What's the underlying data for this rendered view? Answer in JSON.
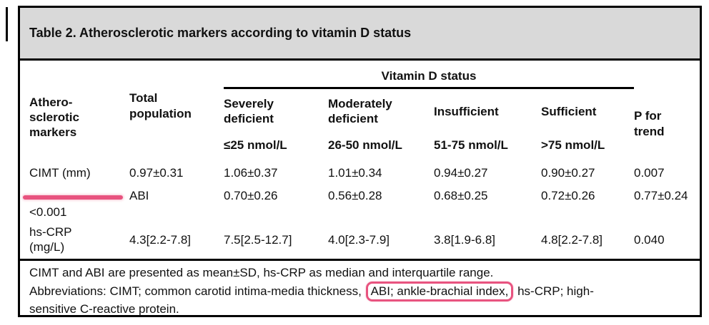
{
  "colors": {
    "title_band_bg": "#d9d9d9",
    "border": "#000000",
    "annotation_pink": "#e8537f"
  },
  "title": "Table 2. Atherosclerotic markers according to vitamin D status",
  "table": {
    "group_header": "Vitamin D status",
    "columns": {
      "marker": "Athero-\nsclerotic\nmarkers",
      "total": "Total\npopulation",
      "groups": [
        {
          "name": "Severely\ndeficient",
          "range": "≤25 nmol/L"
        },
        {
          "name": "Moderately\ndeficient",
          "range": "26-50 nmol/L"
        },
        {
          "name": "Insufficient",
          "range": "51-75 nmol/L"
        },
        {
          "name": "Sufficient",
          "range": ">75 nmol/L"
        }
      ],
      "p_for_trend": "P for\ntrend"
    },
    "rows": [
      {
        "marker": "CIMT (mm)",
        "total": "0.97±0.31",
        "values": [
          "1.06±0.37",
          "1.01±0.34",
          "0.94±0.27",
          "0.90±0.27"
        ],
        "p": "0.007"
      },
      {
        "marker": "ABI",
        "total": "0.70±0.26",
        "values": [
          "0.56±0.28",
          "0.68±0.25",
          "0.72±0.26",
          "0.77±0.24"
        ],
        "p": "<0.001"
      },
      {
        "marker": "hs-CRP\n(mg/L)",
        "total": "4.3[2.2-7.8]",
        "values": [
          "7.5[2.5-12.7]",
          "4.0[2.3-7.9]",
          "3.8[1.9-6.8]",
          "4.8[2.2-7.8]"
        ],
        "p": "0.040"
      }
    ]
  },
  "footnotes": {
    "line1": "CIMT and ABI are presented as mean±SD, hs-CRP as median and interquartile range.",
    "line2_prefix": "Abbreviations: CIMT; common carotid intima-media thickness,",
    "line2_highlight": "ABI; ankle-brachial index,",
    "line2_suffix": "hs-CRP; high-",
    "line3": "sensitive C-reactive protein."
  }
}
